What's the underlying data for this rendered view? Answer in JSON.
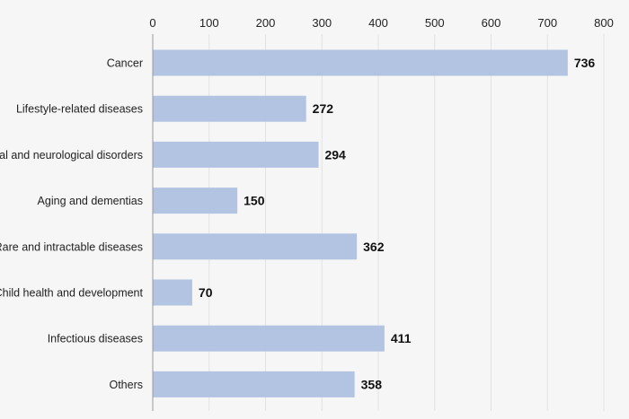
{
  "chart_data": {
    "type": "bar",
    "orientation": "horizontal",
    "categories": [
      "Cancer",
      "Lifestyle-related diseases",
      "Mental and neurological disorders",
      "Aging and dementias",
      "Rare and intractable diseases",
      "Child health and development",
      "Infectious diseases",
      "Others"
    ],
    "values": [
      736,
      272,
      294,
      150,
      362,
      70,
      411,
      358
    ],
    "xticks": [
      0,
      100,
      200,
      300,
      400,
      500,
      600,
      700,
      800
    ],
    "xlim": [
      0,
      800
    ],
    "grid": true,
    "axis_position": "top",
    "bar_color": "#b3c4e2",
    "title": "",
    "xlabel": "",
    "ylabel": ""
  }
}
